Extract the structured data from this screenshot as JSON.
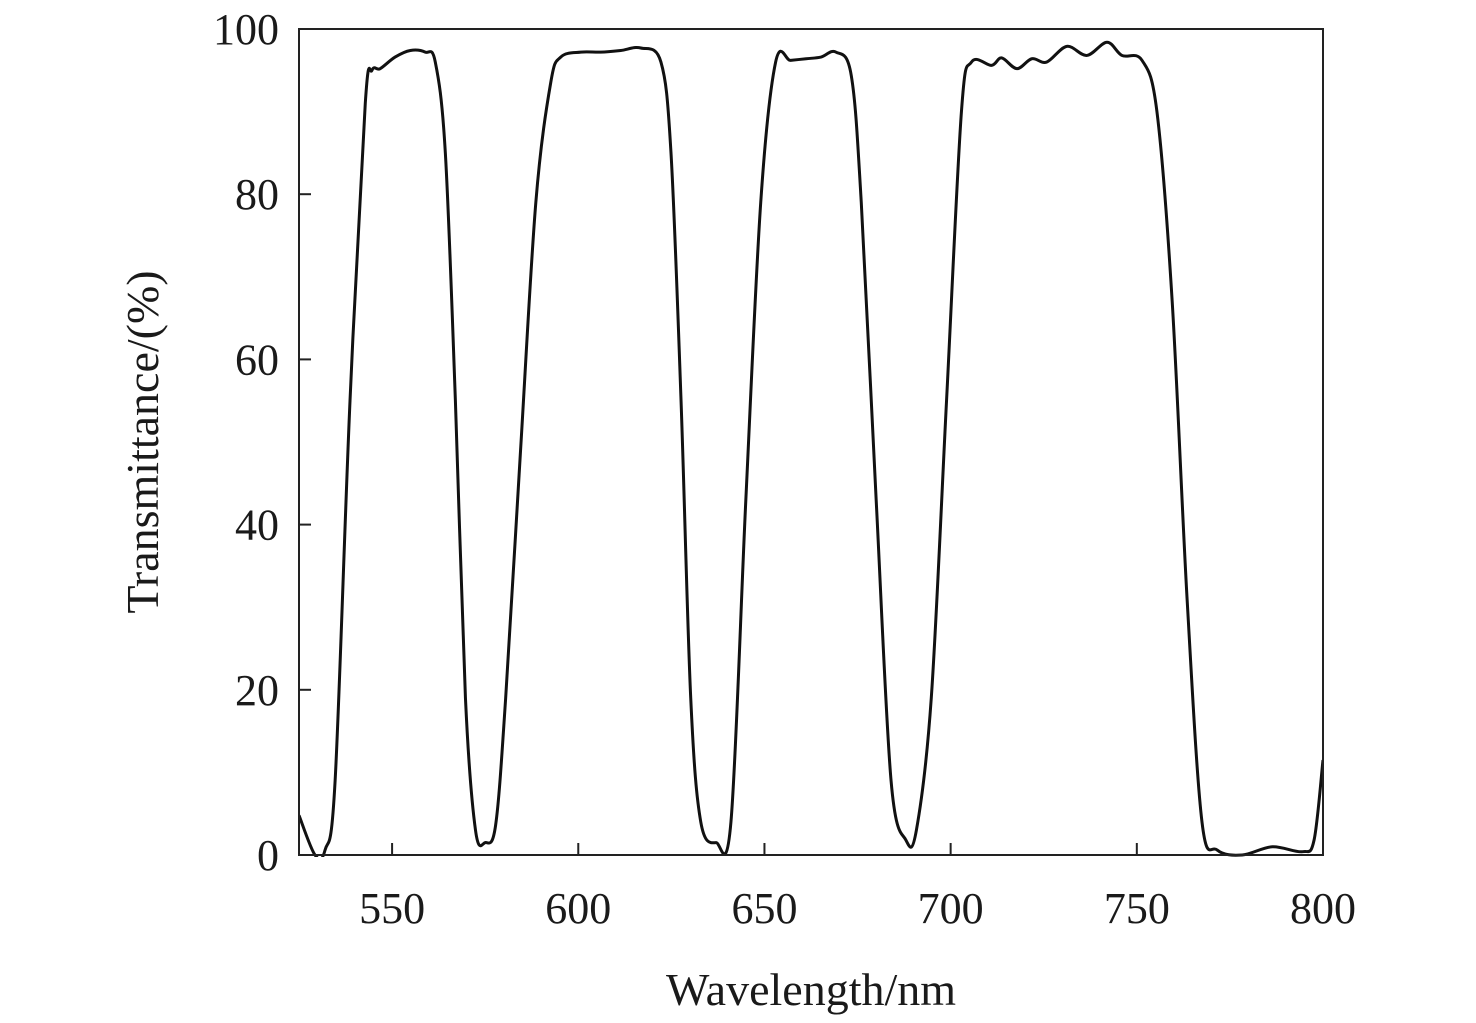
{
  "chart_data": {
    "type": "line",
    "title": "",
    "xlabel": "Wavelength/nm",
    "ylabel": "Transmittance/(%)",
    "xlim": [
      525,
      800
    ],
    "ylim": [
      0,
      100
    ],
    "xticks": [
      550,
      600,
      650,
      700,
      750,
      800
    ],
    "yticks": [
      0,
      20,
      40,
      60,
      80,
      100
    ],
    "grid": false,
    "line_color": "#111111",
    "series": [
      {
        "x": [
          525,
          529.3,
          532,
          534.7,
          538.7,
          542.8,
          544.6,
          546.8,
          550.8,
          554.9,
          558.9,
          561.6,
          564.3,
          567,
          569.7,
          572.4,
          575,
          577.8,
          580.5,
          584.5,
          588.6,
          592.6,
          595.3,
          600.7,
          606,
          611.4,
          616.8,
          622.2,
          624.9,
          627.6,
          630.2,
          632.9,
          637,
          641,
          645,
          649,
          653,
          657,
          661.2,
          665.2,
          669.2,
          673.3,
          676,
          680,
          684,
          688,
          690.8,
          694.8,
          698.9,
          702.9,
          705.6,
          711,
          713.7,
          717.8,
          721.8,
          725.8,
          731.2,
          736.6,
          742,
          746,
          751.4,
          755.4,
          759.5,
          763.5,
          767.5,
          771.6,
          778.3,
          786.4,
          794.5,
          797.6,
          800
        ],
        "y": [
          4.8,
          0,
          0.6,
          9,
          55,
          91,
          95,
          95.2,
          96.6,
          97.4,
          97.2,
          96,
          85,
          55,
          19,
          3,
          1.5,
          3.6,
          19,
          49,
          79,
          93.5,
          96.6,
          97.2,
          97.2,
          97.4,
          97.7,
          96,
          85,
          55,
          19,
          4,
          1.5,
          4,
          43,
          79,
          96,
          96.2,
          96.4,
          96.6,
          97.2,
          94.4,
          79,
          43,
          9,
          1.8,
          3,
          19,
          55,
          90,
          96,
          95.6,
          96.5,
          95.2,
          96.4,
          96,
          97.9,
          96.8,
          98.4,
          96.8,
          96.2,
          90,
          67,
          31,
          4,
          0.6,
          0,
          1,
          0.4,
          1.8,
          11.5
        ]
      }
    ]
  }
}
